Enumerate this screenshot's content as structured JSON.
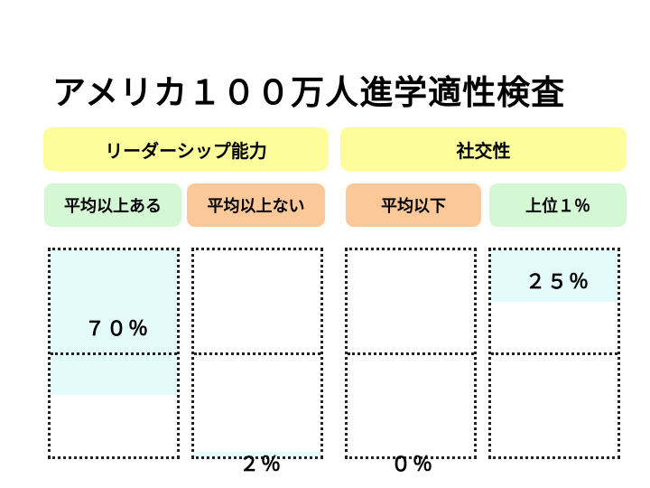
{
  "title": "アメリカ１００万人進学適性検査",
  "colors": {
    "group_bg": "#fdfd9b",
    "green_bg": "#d4f7d4",
    "orange_bg": "#fbc999",
    "fill": "#e3fbfb"
  },
  "chart_data": {
    "type": "bar",
    "title": "アメリカ１００万人進学適性検査",
    "groups": [
      {
        "label": "リーダーシップ能力",
        "categories": [
          "平均以上ある",
          "平均以上ない"
        ],
        "values": [
          70,
          2
        ],
        "value_labels": [
          "７０％",
          "２％"
        ]
      },
      {
        "label": "社交性",
        "categories": [
          "平均以下",
          "上位１％"
        ],
        "values": [
          0,
          25
        ],
        "value_labels": [
          "０％",
          "２５％"
        ]
      }
    ],
    "ylim": [
      0,
      100
    ]
  }
}
